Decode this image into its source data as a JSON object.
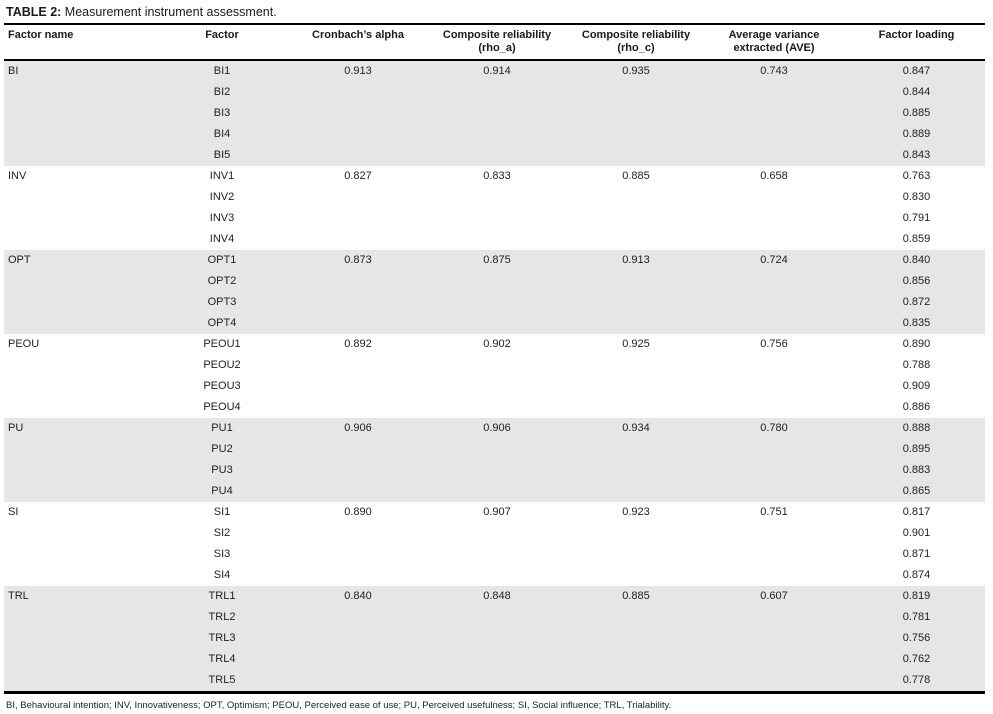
{
  "title": {
    "label": "TABLE 2:",
    "text": " Measurement instrument assessment."
  },
  "colors": {
    "row_shading": "#e6e6e6",
    "border": "#000000",
    "text": "#1f1f1f"
  },
  "table": {
    "columns": [
      "Factor name",
      "Factor",
      "Cronbach’s alpha",
      "Composite reliability\n(rho_a)",
      "Composite reliability\n(rho_c)",
      "Average variance\nextracted (AVE)",
      "Factor loading"
    ],
    "groups": [
      {
        "name": "BI",
        "cronbachs_alpha": "0.913",
        "composite_reliability_rho_a": "0.914",
        "composite_reliability_rho_c": "0.935",
        "ave": "0.743",
        "items": [
          {
            "factor": "BI1",
            "loading": "0.847"
          },
          {
            "factor": "BI2",
            "loading": "0.844"
          },
          {
            "factor": "BI3",
            "loading": "0.885"
          },
          {
            "factor": "BI4",
            "loading": "0.889"
          },
          {
            "factor": "BI5",
            "loading": "0.843"
          }
        ]
      },
      {
        "name": "INV",
        "cronbachs_alpha": "0.827",
        "composite_reliability_rho_a": "0.833",
        "composite_reliability_rho_c": "0.885",
        "ave": "0.658",
        "items": [
          {
            "factor": "INV1",
            "loading": "0.763"
          },
          {
            "factor": "INV2",
            "loading": "0.830"
          },
          {
            "factor": "INV3",
            "loading": "0.791"
          },
          {
            "factor": "INV4",
            "loading": "0.859"
          }
        ]
      },
      {
        "name": "OPT",
        "cronbachs_alpha": "0.873",
        "composite_reliability_rho_a": "0.875",
        "composite_reliability_rho_c": "0.913",
        "ave": "0.724",
        "items": [
          {
            "factor": "OPT1",
            "loading": "0.840"
          },
          {
            "factor": "OPT2",
            "loading": "0.856"
          },
          {
            "factor": "OPT3",
            "loading": "0.872"
          },
          {
            "factor": "OPT4",
            "loading": "0.835"
          }
        ]
      },
      {
        "name": "PEOU",
        "cronbachs_alpha": "0.892",
        "composite_reliability_rho_a": "0.902",
        "composite_reliability_rho_c": "0.925",
        "ave": "0.756",
        "items": [
          {
            "factor": "PEOU1",
            "loading": "0.890"
          },
          {
            "factor": "PEOU2",
            "loading": "0.788"
          },
          {
            "factor": "PEOU3",
            "loading": "0.909"
          },
          {
            "factor": "PEOU4",
            "loading": "0.886"
          }
        ]
      },
      {
        "name": "PU",
        "cronbachs_alpha": "0.906",
        "composite_reliability_rho_a": "0.906",
        "composite_reliability_rho_c": "0.934",
        "ave": "0.780",
        "items": [
          {
            "factor": "PU1",
            "loading": "0.888"
          },
          {
            "factor": "PU2",
            "loading": "0.895"
          },
          {
            "factor": "PU3",
            "loading": "0.883"
          },
          {
            "factor": "PU4",
            "loading": "0.865"
          }
        ]
      },
      {
        "name": "SI",
        "cronbachs_alpha": "0.890",
        "composite_reliability_rho_a": "0.907",
        "composite_reliability_rho_c": "0.923",
        "ave": "0.751",
        "items": [
          {
            "factor": "SI1",
            "loading": "0.817"
          },
          {
            "factor": "SI2",
            "loading": "0.901"
          },
          {
            "factor": "SI3",
            "loading": "0.871"
          },
          {
            "factor": "SI4",
            "loading": "0.874"
          }
        ]
      },
      {
        "name": "TRL",
        "cronbachs_alpha": "0.840",
        "composite_reliability_rho_a": "0.848",
        "composite_reliability_rho_c": "0.885",
        "ave": "0.607",
        "items": [
          {
            "factor": "TRL1",
            "loading": "0.819"
          },
          {
            "factor": "TRL2",
            "loading": "0.781"
          },
          {
            "factor": "TRL3",
            "loading": "0.756"
          },
          {
            "factor": "TRL4",
            "loading": "0.762"
          },
          {
            "factor": "TRL5",
            "loading": "0.778"
          }
        ]
      }
    ]
  },
  "footnote": {
    "text": "BI, Behavioural intention; INV, Innovativeness; OPT, Optimism; PEOU, Perceived ease of use; PU, Perceived usefulness; SI, Social influence; TRL, Trialability."
  }
}
